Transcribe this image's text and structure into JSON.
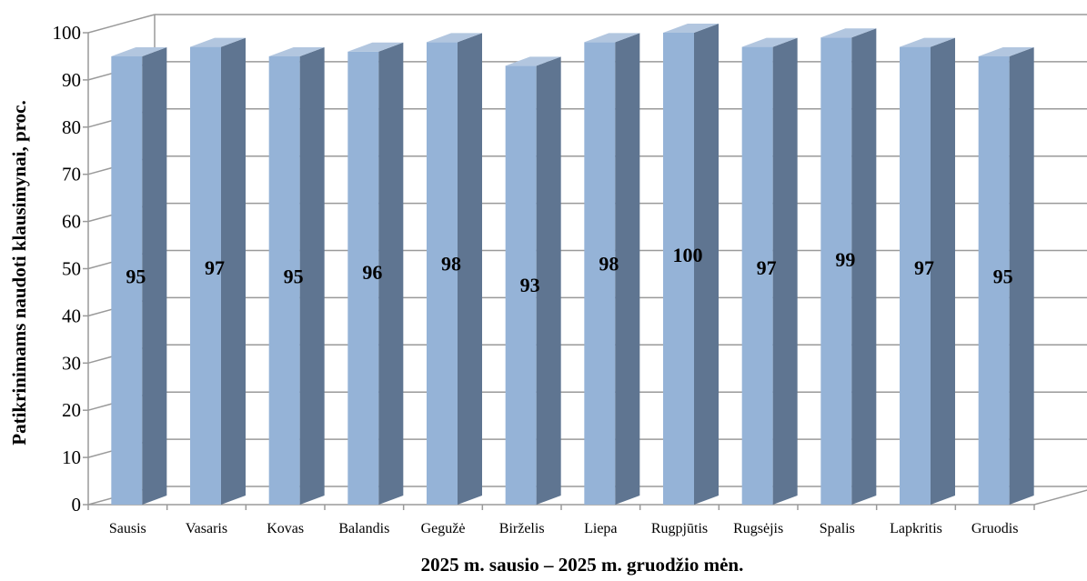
{
  "chart_data": {
    "type": "bar",
    "style": "3d-column",
    "categories": [
      "Sausis",
      "Vasaris",
      "Kovas",
      "Balandis",
      "Gegužė",
      "Birželis",
      "Liepa",
      "Rugpjūtis",
      "Rugsėjis",
      "Spalis",
      "Lapkritis",
      "Gruodis"
    ],
    "values": [
      95,
      97,
      95,
      96,
      98,
      93,
      98,
      100,
      97,
      99,
      97,
      95
    ],
    "xlabel": "2025 m. sausio – 2025 m. gruodžio mėn.",
    "ylabel": "Patikrinimams naudoti klausimynai, proc.",
    "ylim": [
      0,
      100
    ],
    "yticks": [
      0,
      10,
      20,
      30,
      40,
      50,
      60,
      70,
      80,
      90,
      100
    ],
    "grid": true,
    "legend": "none",
    "colors": {
      "bar_front": "#95B3D7",
      "bar_side": "#5F7591",
      "bar_top": "#B2C6DF",
      "grid": "#9A9A9A"
    }
  }
}
